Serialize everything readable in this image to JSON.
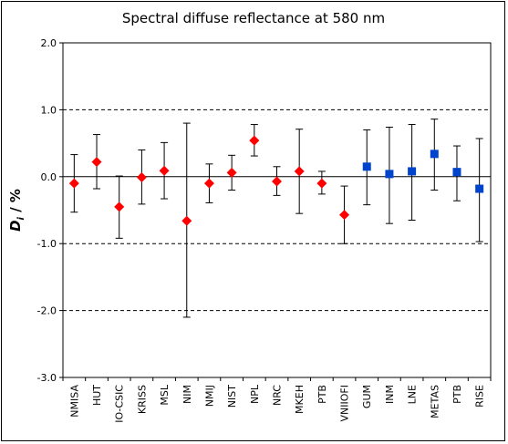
{
  "chart_data": {
    "type": "scatter",
    "title": "Spectral diffuse reflectance at 580 nm",
    "ylabel_main": "D",
    "ylabel_sub": "i",
    "ylabel_unit": " / %",
    "ylim": [
      -3.0,
      2.0
    ],
    "yticks": [
      "2.0",
      "1.0",
      "0.0",
      "-1.0",
      "-2.0",
      "-3.0"
    ],
    "yticks_values": [
      2.0,
      1.0,
      0.0,
      -1.0,
      -2.0,
      -3.0
    ],
    "gridlines_dashed": [
      1.0,
      -1.0,
      -2.0
    ],
    "categories": [
      "NMISA",
      "HUT",
      "IO-CSIC",
      "KRISS",
      "MSL",
      "NIM",
      "NMIJ",
      "NIST",
      "NPL",
      "NRC",
      "MKEH",
      "PTB",
      "VNIIOFI",
      "GUM",
      "INM",
      "LNE",
      "METAS",
      "PTB",
      "RISE"
    ],
    "series": [
      {
        "marker": "diamond",
        "color": "#ff0000",
        "values": [
          -0.1,
          0.22,
          -0.45,
          -0.01,
          0.09,
          -0.66,
          -0.1,
          0.06,
          0.54,
          -0.07,
          0.08,
          -0.1,
          -0.57
        ],
        "upper": [
          0.33,
          0.63,
          0.01,
          0.4,
          0.51,
          0.8,
          0.19,
          0.32,
          0.78,
          0.15,
          0.71,
          0.08,
          -0.14
        ],
        "lower": [
          -0.53,
          -0.18,
          -0.92,
          -0.41,
          -0.33,
          -2.1,
          -0.39,
          -0.2,
          0.31,
          -0.28,
          -0.55,
          -0.26,
          -1.0
        ]
      },
      {
        "marker": "square",
        "color": "#0044cc",
        "values": [
          0.15,
          0.04,
          0.08,
          0.34,
          0.07,
          -0.18
        ],
        "upper": [
          0.7,
          0.74,
          0.78,
          0.86,
          0.46,
          0.57
        ],
        "lower": [
          -0.42,
          -0.7,
          -0.65,
          -0.2,
          -0.36,
          -0.97
        ]
      }
    ]
  }
}
